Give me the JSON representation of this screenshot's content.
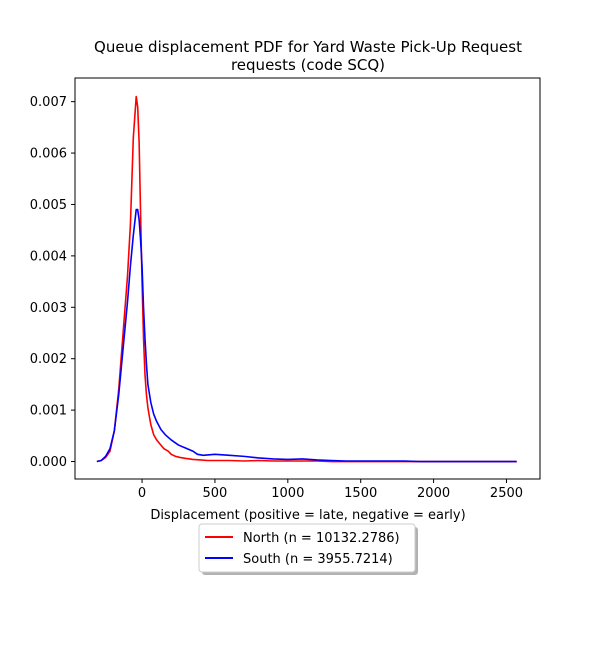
{
  "chart_data": {
    "type": "line",
    "title_lines": [
      "Queue displacement PDF for Yard Waste Pick-Up Request",
      "requests (code SCQ)"
    ],
    "xlabel": "Displacement (positive = late, negative = early)",
    "ylabel": "",
    "xlim": [
      -460,
      2730
    ],
    "ylim": [
      -0.00034,
      0.00746
    ],
    "xticks": [
      0,
      500,
      1000,
      1500,
      2000,
      2500
    ],
    "xtick_labels": [
      "0",
      "500",
      "1000",
      "1500",
      "2000",
      "2500"
    ],
    "yticks": [
      0.0,
      0.001,
      0.002,
      0.003,
      0.004,
      0.005,
      0.006,
      0.007
    ],
    "ytick_labels": [
      "0.000",
      "0.001",
      "0.002",
      "0.003",
      "0.004",
      "0.005",
      "0.006",
      "0.007"
    ],
    "grid": false,
    "legend_position": "below-center",
    "series": [
      {
        "name": "North (n = 10132.2786)",
        "color": "#ff0000",
        "x": [
          -310,
          -280,
          -250,
          -220,
          -190,
          -160,
          -130,
          -100,
          -80,
          -60,
          -40,
          -30,
          -20,
          -10,
          0,
          10,
          20,
          30,
          40,
          50,
          60,
          80,
          100,
          120,
          150,
          180,
          200,
          230,
          260,
          300,
          350,
          400,
          450,
          500,
          600,
          700,
          800,
          900,
          1000,
          1100,
          1200,
          1300,
          1400,
          1500,
          1600,
          1700,
          1800,
          1900,
          2000,
          2100,
          2200,
          2300,
          2400,
          2500,
          2570
        ],
        "y": [
          0.0,
          2e-05,
          8e-05,
          0.0002,
          0.0006,
          0.0014,
          0.0025,
          0.0036,
          0.0046,
          0.0063,
          0.0071,
          0.0069,
          0.0062,
          0.0048,
          0.0035,
          0.0024,
          0.0017,
          0.0013,
          0.00105,
          0.00088,
          0.00072,
          0.00052,
          0.00042,
          0.00035,
          0.00025,
          0.0002,
          0.00014,
          0.0001,
          8e-05,
          6e-05,
          4e-05,
          3e-05,
          2e-05,
          2e-05,
          2e-05,
          1e-05,
          2e-05,
          1e-05,
          1e-05,
          1e-05,
          1e-05,
          0.0,
          0.0,
          0.0,
          0.0,
          0.0,
          0.0,
          0.0,
          0.0,
          0.0,
          0.0,
          0.0,
          0.0,
          0.0,
          0.0
        ]
      },
      {
        "name": "South (n = 3955.7214)",
        "color": "#0000ff",
        "x": [
          -310,
          -280,
          -250,
          -220,
          -190,
          -160,
          -130,
          -100,
          -80,
          -60,
          -40,
          -30,
          -20,
          -10,
          0,
          10,
          20,
          30,
          40,
          60,
          80,
          100,
          130,
          160,
          200,
          250,
          300,
          350,
          380,
          420,
          460,
          500,
          600,
          700,
          800,
          900,
          1000,
          1100,
          1200,
          1300,
          1400,
          1500,
          1600,
          1700,
          1800,
          1900,
          2000,
          2100,
          2200,
          2300,
          2400,
          2500,
          2570
        ],
        "y": [
          0.0,
          2e-05,
          0.0001,
          0.00025,
          0.0006,
          0.0013,
          0.0022,
          0.0031,
          0.0038,
          0.0044,
          0.0049,
          0.0049,
          0.0047,
          0.0043,
          0.0038,
          0.003,
          0.0024,
          0.0019,
          0.0015,
          0.00115,
          0.00092,
          0.00078,
          0.00062,
          0.00052,
          0.00042,
          0.00032,
          0.00026,
          0.0002,
          0.00014,
          0.00012,
          0.00013,
          0.00014,
          0.00012,
          0.0001,
          7e-05,
          5e-05,
          4e-05,
          5e-05,
          3e-05,
          2e-05,
          1e-05,
          1e-05,
          1e-05,
          1e-05,
          1e-05,
          0.0,
          0.0,
          0.0,
          0.0,
          0.0,
          0.0,
          0.0,
          0.0
        ]
      }
    ]
  }
}
